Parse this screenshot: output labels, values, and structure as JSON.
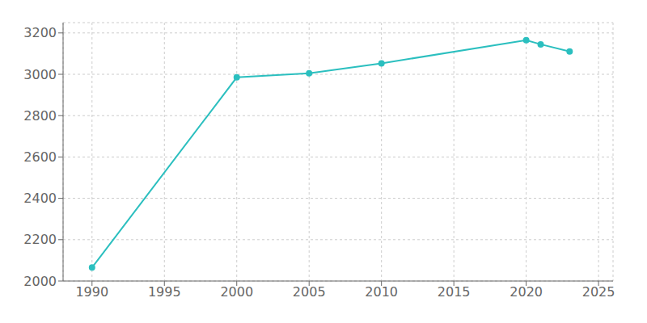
{
  "chart_data": {
    "type": "line",
    "x": [
      1990,
      2000,
      2005,
      2010,
      2020,
      2021,
      2023
    ],
    "values": [
      2065,
      2985,
      3005,
      3053,
      3165,
      3145,
      3110
    ],
    "color": "#2bbfbf",
    "marker": "circle",
    "xlim": [
      1988,
      2026
    ],
    "ylim": [
      2000,
      3250
    ],
    "xticks": [
      1990,
      1995,
      2000,
      2005,
      2010,
      2015,
      2020,
      2025
    ],
    "yticks": [
      2000,
      2200,
      2400,
      2600,
      2800,
      3000,
      3200
    ],
    "grid": true
  }
}
